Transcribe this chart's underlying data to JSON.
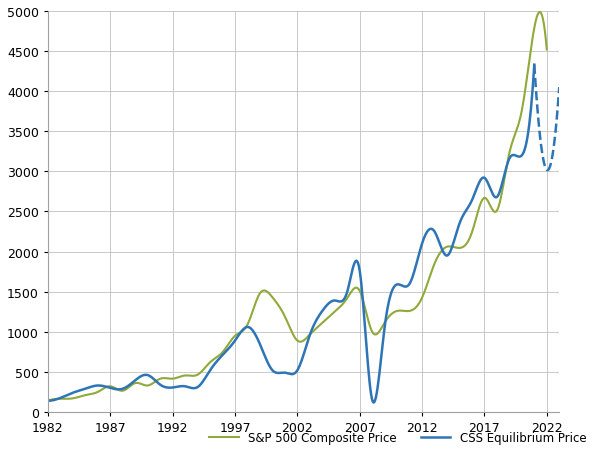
{
  "title": "",
  "sp500_color": "#8faa3a",
  "css_color": "#2e75b6",
  "css_dashed_color": "#2e75b6",
  "background_color": "#ffffff",
  "grid_color": "#c0c0c0",
  "ylim": [
    0,
    5000
  ],
  "yticks": [
    0,
    500,
    1000,
    1500,
    2000,
    2500,
    3000,
    3500,
    4000,
    4500,
    5000
  ],
  "xlim_start": 1982,
  "xlim_end": 2023,
  "xticks": [
    1982,
    1987,
    1992,
    1997,
    2002,
    2007,
    2012,
    2017,
    2022
  ],
  "legend_sp500": "S&P 500 Composite Price",
  "legend_css": "CSS Equilibrium Price",
  "sp500_years": [
    1982,
    1983,
    1984,
    1985,
    1986,
    1987,
    1988,
    1989,
    1990,
    1991,
    1992,
    1993,
    1994,
    1995,
    1996,
    1997,
    1998,
    1999,
    2000,
    2001,
    2002,
    2003,
    2004,
    2005,
    2006,
    2007,
    2008,
    2009,
    2010,
    2011,
    2012,
    2013,
    2014,
    2015,
    2016,
    2017,
    2018,
    2019,
    2020,
    2021,
    2022
  ],
  "sp500_values": [
    140,
    165,
    170,
    210,
    250,
    320,
    265,
    360,
    330,
    415,
    415,
    455,
    465,
    620,
    745,
    950,
    1090,
    1480,
    1430,
    1190,
    890,
    965,
    1110,
    1250,
    1420,
    1510,
    1000,
    1115,
    1260,
    1260,
    1425,
    1850,
    2060,
    2045,
    2240,
    2670,
    2510,
    3230,
    3760,
    4790,
    4520
  ],
  "css_years": [
    1982,
    1983,
    1984,
    1985,
    1986,
    1987,
    1988,
    1989,
    1990,
    1991,
    1992,
    1993,
    1994,
    1995,
    1996,
    1997,
    1998,
    1999,
    2000,
    2001,
    2002,
    2003,
    2004,
    2005,
    2006,
    2007,
    2008,
    2009,
    2010,
    2011,
    2012,
    2013,
    2014,
    2015,
    2016,
    2017,
    2018,
    2019,
    2020,
    2021
  ],
  "css_values": [
    140,
    175,
    240,
    290,
    330,
    300,
    290,
    395,
    460,
    340,
    305,
    320,
    310,
    520,
    710,
    890,
    1060,
    845,
    520,
    490,
    520,
    960,
    1260,
    1390,
    1500,
    1760,
    150,
    1060,
    1590,
    1600,
    2100,
    2250,
    1950,
    2350,
    2640,
    2920,
    2680,
    3160,
    3200,
    4330
  ],
  "css_dashed_years": [
    2021,
    2022,
    2023
  ],
  "css_dashed_values": [
    4330,
    3020,
    4050
  ]
}
